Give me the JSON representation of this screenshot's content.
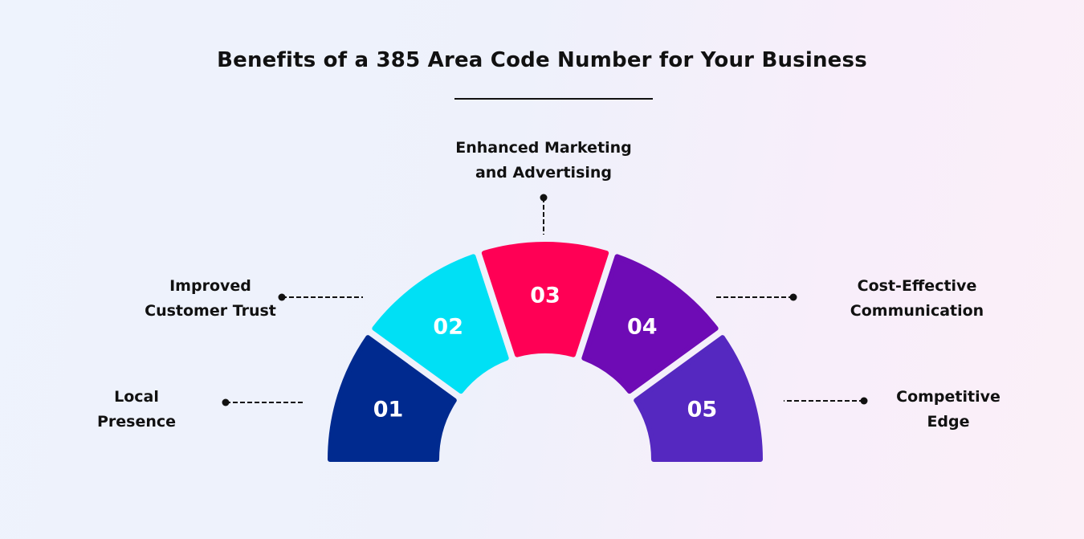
{
  "title": "Benefits of a 385 Area Code Number for Your Business",
  "segments": [
    {
      "number": "01",
      "line1": "Local",
      "line2": "Presence",
      "color": "#002a8f"
    },
    {
      "number": "02",
      "line1": "Improved",
      "line2": "Customer Trust",
      "color": "#00e0f5"
    },
    {
      "number": "03",
      "line1": "Enhanced Marketing",
      "line2": "and Advertising",
      "color": "#ff0055"
    },
    {
      "number": "04",
      "line1": "Cost-Effective",
      "line2": "Communication",
      "color": "#6e0bb5"
    },
    {
      "number": "05",
      "line1": "Competitive",
      "line2": "Edge",
      "color": "#5528c0"
    }
  ]
}
